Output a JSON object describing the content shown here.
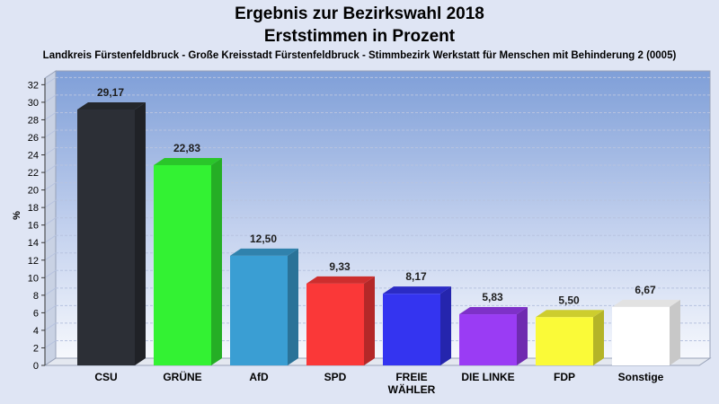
{
  "chart_data": {
    "type": "bar",
    "title": "Ergebnis zur Bezirkswahl 2018",
    "subtitle": "Erststimmen in Prozent",
    "caption": "Landkreis Fürstenfeldbruck - Große Kreisstadt Fürstenfeldbruck - Stimmbezirk Werkstatt für Menschen mit Behinderung 2 (0005)",
    "ylabel": "%",
    "xlabel": "",
    "ylim": [
      0,
      33
    ],
    "yticks": [
      0,
      2,
      4,
      6,
      8,
      10,
      12,
      14,
      16,
      18,
      20,
      22,
      24,
      26,
      28,
      30,
      32
    ],
    "grid": true,
    "categories": [
      "CSU",
      "GRÜNE",
      "AfD",
      "SPD",
      "FREIE WÄHLER",
      "DIE LINKE",
      "FDP",
      "Sonstige"
    ],
    "category_lines": [
      [
        "CSU"
      ],
      [
        "GRÜNE"
      ],
      [
        "AfD"
      ],
      [
        "SPD"
      ],
      [
        "FREIE",
        "WÄHLER"
      ],
      [
        "DIE LINKE"
      ],
      [
        "FDP"
      ],
      [
        "Sonstige"
      ]
    ],
    "values": [
      29.17,
      22.83,
      12.5,
      9.33,
      8.17,
      5.83,
      5.5,
      6.67
    ],
    "value_labels": [
      "29,17",
      "22,83",
      "12,50",
      "9,33",
      "8,17",
      "5,83",
      "5,50",
      "6,67"
    ],
    "colors": [
      "#2c2f36",
      "#33f233",
      "#3a9ed3",
      "#fa3838",
      "#3434f0",
      "#9a3cf4",
      "#fafa38",
      "#ffffff"
    ]
  }
}
